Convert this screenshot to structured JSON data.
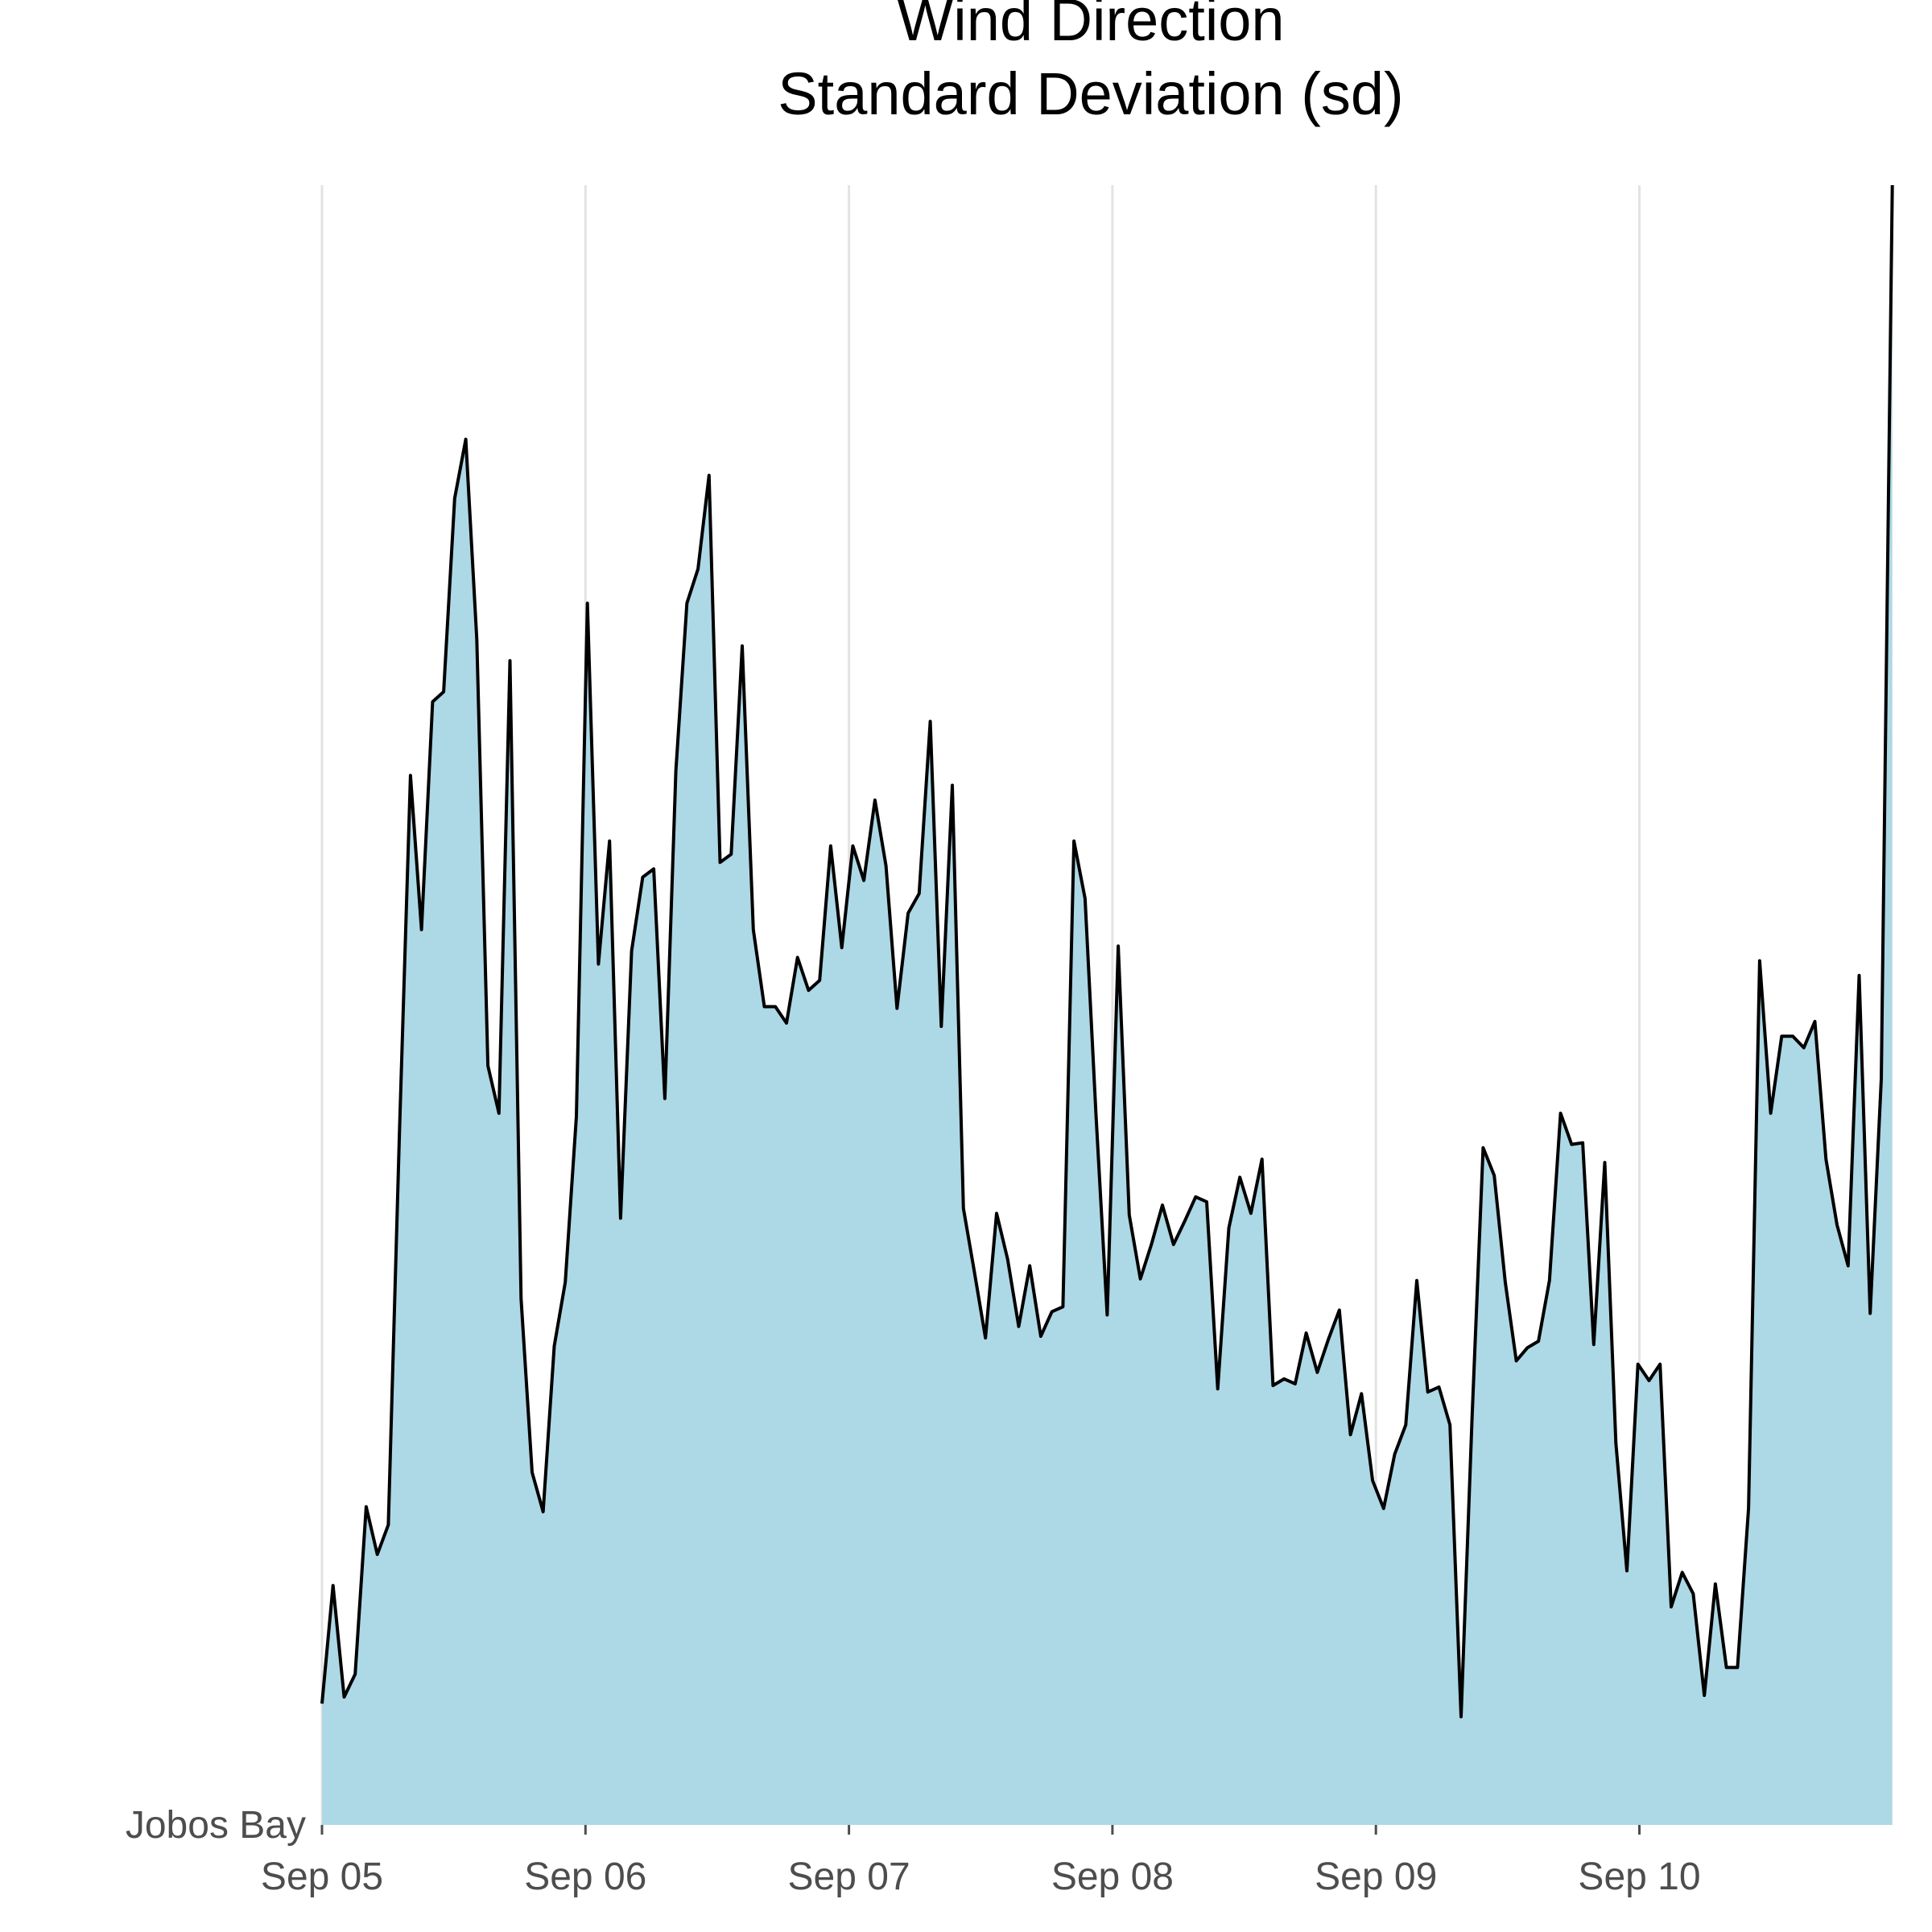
{
  "chart_data": {
    "type": "area",
    "title_lines": [
      "Wind Direction",
      "Standard Deviation (sd)"
    ],
    "y_category": "Jobos Bay",
    "x_tick_labels": [
      "Sep 05",
      "Sep 06",
      "Sep 07",
      "Sep 08",
      "Sep 09",
      "Sep 10"
    ],
    "x_start_date": "2018-09-05",
    "x_step_hours": 1,
    "x_range_days": [
      0,
      5.96
    ],
    "ylim": [
      0,
      100
    ],
    "grid": "vertical-major",
    "fill_color": "#add8e6",
    "line_color": "#000000",
    "values": [
      7.4,
      14.6,
      7.8,
      9.2,
      19.4,
      16.5,
      18.3,
      42.2,
      64.0,
      54.6,
      68.5,
      69.1,
      80.9,
      84.5,
      72.3,
      46.3,
      43.4,
      71.0,
      32.1,
      21.5,
      19.1,
      29.2,
      33.1,
      43.2,
      74.5,
      52.5,
      60.0,
      37.0,
      53.3,
      57.8,
      58.3,
      44.3,
      64.3,
      74.5,
      76.6,
      82.3,
      58.7,
      59.2,
      71.9,
      54.6,
      49.9,
      49.9,
      48.9,
      52.9,
      50.9,
      51.5,
      59.7,
      53.5,
      59.7,
      57.6,
      62.5,
      58.5,
      49.8,
      55.6,
      56.8,
      67.3,
      48.7,
      63.4,
      37.6,
      33.7,
      29.7,
      37.3,
      34.5,
      30.4,
      34.1,
      29.8,
      31.3,
      31.6,
      60.0,
      56.5,
      43.2,
      31.1,
      53.6,
      37.2,
      33.3,
      35.4,
      37.8,
      35.4,
      36.8,
      38.3,
      38.0,
      26.6,
      36.4,
      39.5,
      37.3,
      40.6,
      26.8,
      27.2,
      26.9,
      30.0,
      27.6,
      29.6,
      31.4,
      23.8,
      26.3,
      21.0,
      19.3,
      22.6,
      24.4,
      33.2,
      26.4,
      26.7,
      24.4,
      6.6,
      24.9,
      41.3,
      39.6,
      33.1,
      28.3,
      29.1,
      29.5,
      33.2,
      43.4,
      41.5,
      41.6,
      29.3,
      40.4,
      23.3,
      15.5,
      28.1,
      27.1,
      28.1,
      13.3,
      15.4,
      14.1,
      7.9,
      14.7,
      9.6,
      9.6,
      19.3,
      52.7,
      43.4,
      48.1,
      48.1,
      47.4,
      49.0,
      40.6,
      36.6,
      34.1,
      51.8,
      31.2,
      45.5,
      100.0
    ]
  }
}
